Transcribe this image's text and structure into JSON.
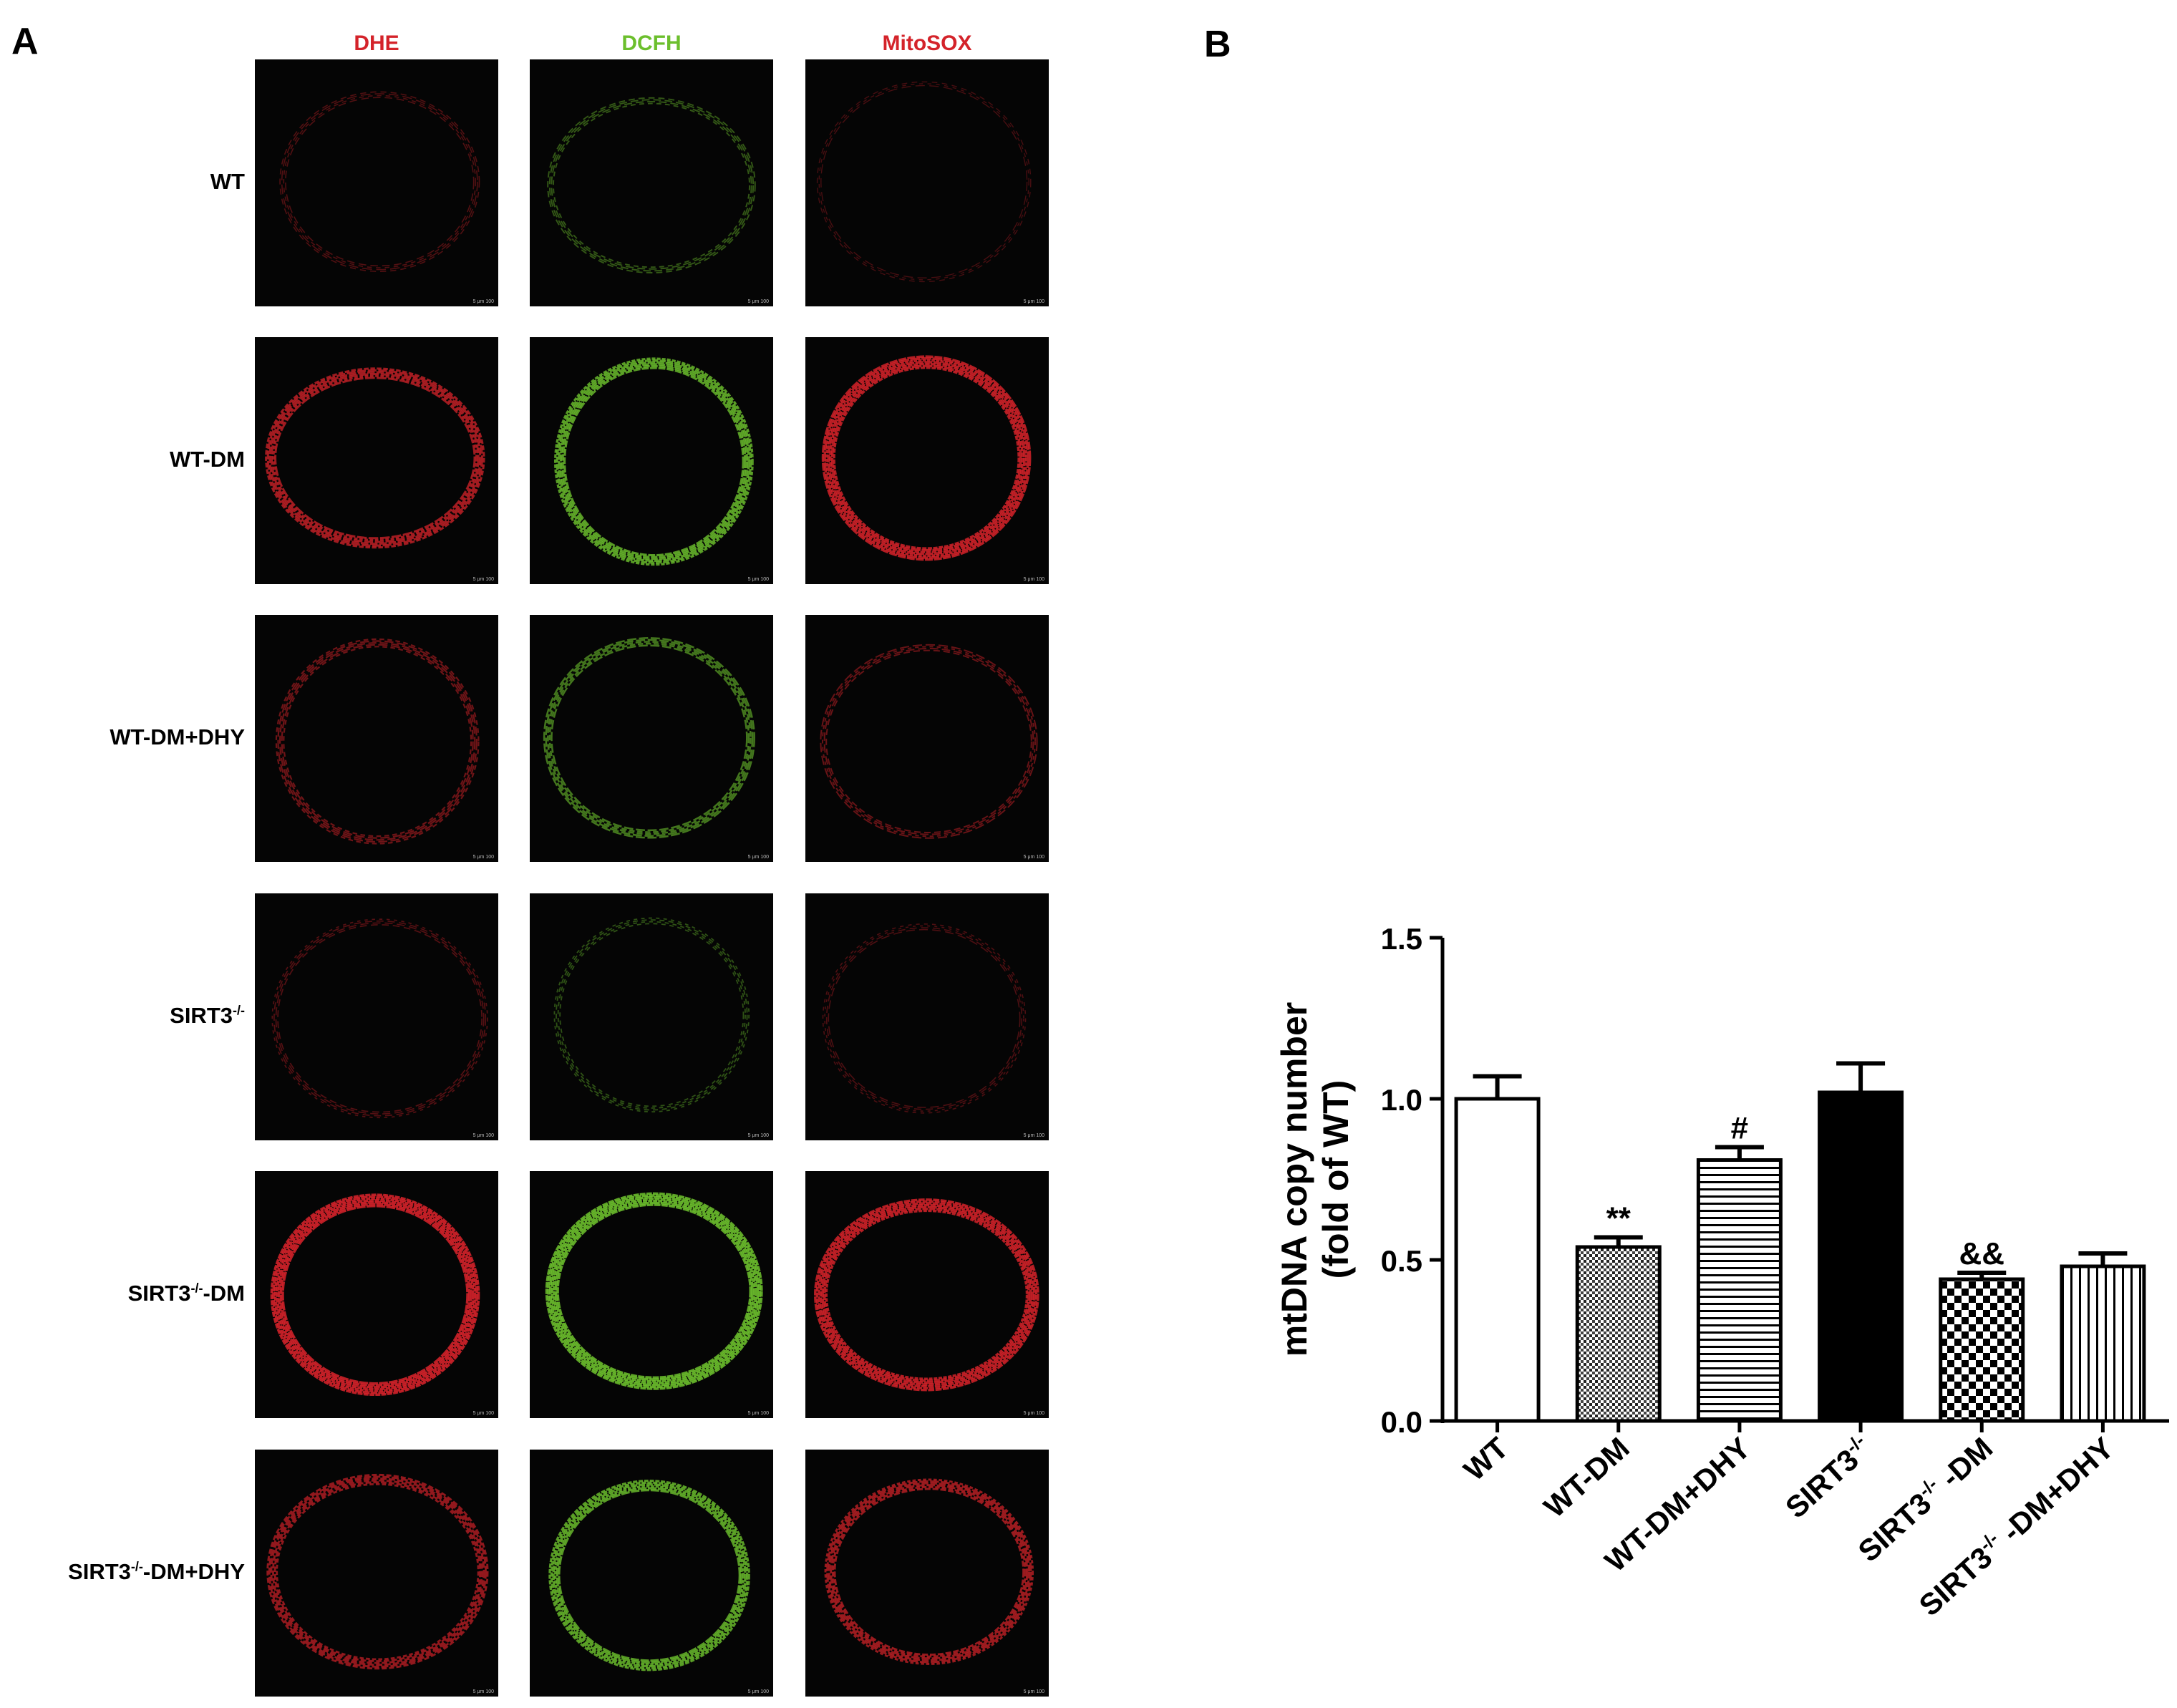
{
  "panel_a": {
    "letter": "A",
    "columns": [
      {
        "label": "DHE",
        "color": "#d4232a"
      },
      {
        "label": "DCFH",
        "color": "#6cbf2d"
      },
      {
        "label": "MitoSOX",
        "color": "#d4232a"
      }
    ],
    "rows": [
      {
        "label": "WT",
        "sup": "",
        "suffix": "",
        "intensity": [
          0.18,
          0.3,
          0.1
        ]
      },
      {
        "label": "WT-DM",
        "sup": "",
        "suffix": "",
        "intensity": [
          0.75,
          0.85,
          0.9
        ]
      },
      {
        "label": "WT-DM+DHY",
        "sup": "",
        "suffix": "",
        "intensity": [
          0.4,
          0.55,
          0.35
        ]
      },
      {
        "label": "SIRT3",
        "sup": "-/-",
        "suffix": "",
        "intensity": [
          0.2,
          0.25,
          0.15
        ]
      },
      {
        "label": "SIRT3",
        "sup": "-/-",
        "suffix": "-DM",
        "intensity": [
          0.95,
          0.95,
          0.9
        ]
      },
      {
        "label": "SIRT3",
        "sup": "-/-",
        "suffix": "-DM+DHY",
        "intensity": [
          0.65,
          0.85,
          0.7
        ]
      }
    ],
    "scale_text": "5 μm 100"
  },
  "panel_b": {
    "letter": "B"
  },
  "chart_data": {
    "type": "bar",
    "ylabel": "mtDNA copy number (fold of WT)",
    "ylabel_lines": [
      "mtDNA copy number",
      "(fold of WT)"
    ],
    "ylim": [
      0,
      1.5
    ],
    "yticks": [
      "0.0",
      "0.5",
      "1.0",
      "1.5"
    ],
    "yticks_values": [
      0,
      0.5,
      1.0,
      1.5
    ],
    "categories": [
      "WT",
      "WT-DM",
      "WT-DM+DHY",
      "SIRT3-/-",
      "SIRT3-/- -DM",
      "SIRT3-/- -DM+DHY"
    ],
    "category_labels": [
      {
        "main": "WT",
        "sup": "",
        "suffix": ""
      },
      {
        "main": "WT-DM",
        "sup": "",
        "suffix": ""
      },
      {
        "main": "WT-DM+DHY",
        "sup": "",
        "suffix": ""
      },
      {
        "main": "SIRT3",
        "sup": "-/-",
        "suffix": ""
      },
      {
        "main": "SIRT3",
        "sup": "-/-",
        "suffix": " -DM"
      },
      {
        "main": "SIRT3",
        "sup": "-/-",
        "suffix": " -DM+DHY"
      }
    ],
    "values": [
      1.0,
      0.54,
      0.81,
      1.02,
      0.44,
      0.48
    ],
    "errors": [
      0.07,
      0.03,
      0.04,
      0.09,
      0.02,
      0.04
    ],
    "fills": [
      "white",
      "dots",
      "hlines",
      "black",
      "checker",
      "vlines"
    ],
    "annotations": [
      "",
      "**",
      "#",
      "",
      "&&",
      ""
    ]
  }
}
